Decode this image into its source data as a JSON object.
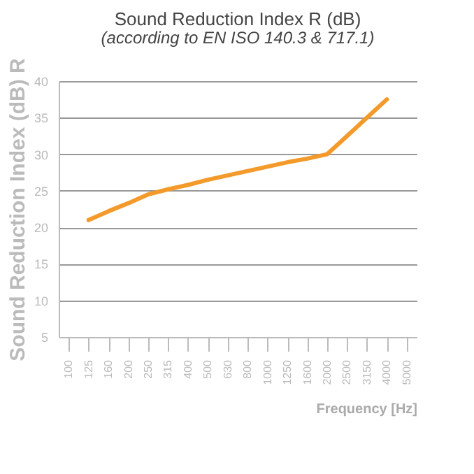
{
  "chart_data": {
    "type": "line",
    "title": "Sound Reduction Index R (dB)",
    "subtitle": "(according to EN ISO 140.3 & 717.1)",
    "xlabel": "Frequency [Hz]",
    "ylabel": "Sound Reduction Index (dB) R",
    "categories": [
      "100",
      "125",
      "160",
      "200",
      "250",
      "315",
      "400",
      "500",
      "630",
      "800",
      "1000",
      "1250",
      "1600",
      "2000",
      "2500",
      "3150",
      "4000",
      "5000"
    ],
    "series": [
      {
        "color": "#f39a2b",
        "values": [
          null,
          21,
          22.2,
          23.3,
          24.5,
          25.2,
          25.8,
          26.5,
          27.1,
          27.7,
          28.3,
          28.9,
          29.4,
          30,
          32.5,
          35,
          37.5,
          null
        ]
      }
    ],
    "ylim": [
      5,
      40
    ],
    "yticks": [
      5,
      10,
      15,
      20,
      25,
      30,
      35,
      40
    ],
    "grid": "y",
    "marker": "none",
    "line_style": "solid"
  }
}
